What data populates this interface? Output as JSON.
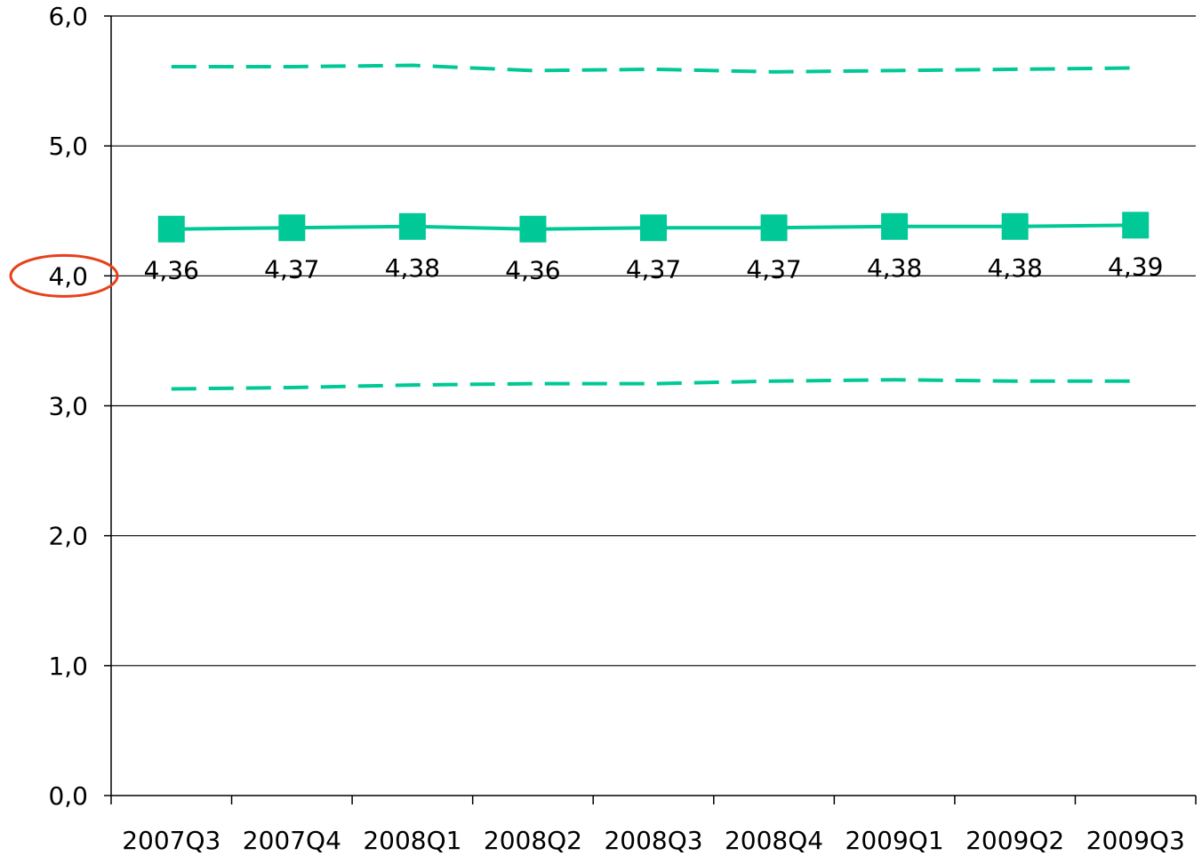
{
  "chart_data": {
    "type": "line",
    "title": "",
    "xlabel": "",
    "ylabel": "",
    "categories": [
      "2007Q3",
      "2007Q4",
      "2008Q1",
      "2008Q2",
      "2008Q3",
      "2008Q4",
      "2009Q1",
      "2009Q2",
      "2009Q3"
    ],
    "ylim": [
      0,
      6
    ],
    "yticks": [
      0,
      1,
      2,
      3,
      4,
      5,
      6
    ],
    "ytick_labels": [
      "0,0",
      "1,0",
      "2,0",
      "3,0",
      "4,0",
      "5,0",
      "6,0"
    ],
    "grid": true,
    "legend": "none",
    "series": [
      {
        "values": [
          4.36,
          4.37,
          4.38,
          4.36,
          4.37,
          4.37,
          4.38,
          4.38,
          4.39
        ],
        "data_labels": [
          "4,36",
          "4,37",
          "4,38",
          "4,36",
          "4,37",
          "4,37",
          "4,38",
          "4,38",
          "4,39"
        ],
        "style": "solid",
        "marker": "square"
      },
      {
        "values": [
          5.61,
          5.61,
          5.62,
          5.58,
          5.59,
          5.57,
          5.58,
          5.59,
          5.6
        ],
        "style": "dashed",
        "marker": "none"
      },
      {
        "values": [
          3.13,
          3.14,
          3.16,
          3.17,
          3.17,
          3.19,
          3.2,
          3.19,
          3.19
        ],
        "style": "dashed",
        "marker": "none"
      }
    ],
    "highlight": {
      "target": "y-tick",
      "value": "4,0",
      "shape": "ellipse",
      "color": "#E8401C"
    }
  },
  "colors": {
    "series": "#00C896",
    "axis": "#000000",
    "grid": "#000000",
    "background": "#FFFFFF"
  }
}
